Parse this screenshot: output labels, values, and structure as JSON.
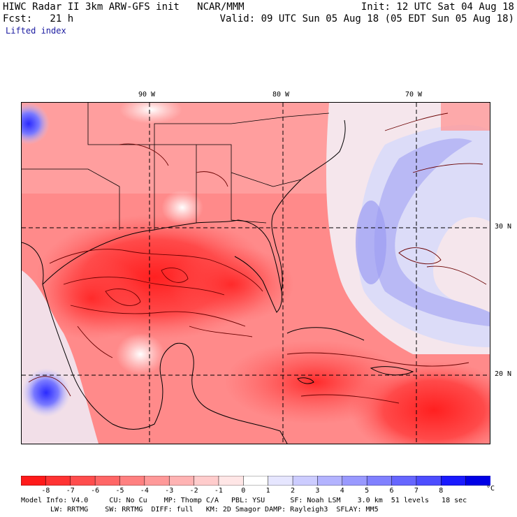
{
  "header": {
    "title": "HIWC Radar II 3km ARW-GFS init   NCAR/MMM",
    "init": "Init: 12 UTC Sat 04 Aug 18",
    "forecast": "Fcst:   21 h",
    "valid": "Valid: 09 UTC Sun 05 Aug 18 (05 EDT Sun 05 Aug 18)",
    "field": "Lifted index"
  },
  "map": {
    "lon_labels": [
      "90 W",
      "80 W",
      "70 W"
    ],
    "lat_labels": [
      "30 N",
      "20 N"
    ]
  },
  "colorbar": {
    "ticks": [
      "-8",
      "-7",
      "-6",
      "-5",
      "-4",
      "-3",
      "-2",
      "-1",
      "0",
      "1",
      "2",
      "3",
      "4",
      "5",
      "6",
      "7",
      "8"
    ],
    "unit": "°C",
    "colors": [
      "#ff1a1a",
      "#ff3333",
      "#ff4d4d",
      "#ff6666",
      "#ff8080",
      "#ff9999",
      "#ffb3b3",
      "#ffcccc",
      "#ffe6e6",
      "#ffffff",
      "#e6e6ff",
      "#ccccff",
      "#b3b3ff",
      "#9999ff",
      "#8080ff",
      "#6666ff",
      "#4d4dff",
      "#1a1aff",
      "#0000e6"
    ]
  },
  "footer": {
    "line1": "Model Info: V4.0     CU: No Cu    MP: Thomp C/A   PBL: YSU      SF: Noah LSM    3.0 km  51 levels   18 sec",
    "line2": "LW: RRTMG    SW: RRTMG  DIFF: full   KM: 2D Smagor DAMP: Rayleigh3  SFLAY: MM5"
  }
}
